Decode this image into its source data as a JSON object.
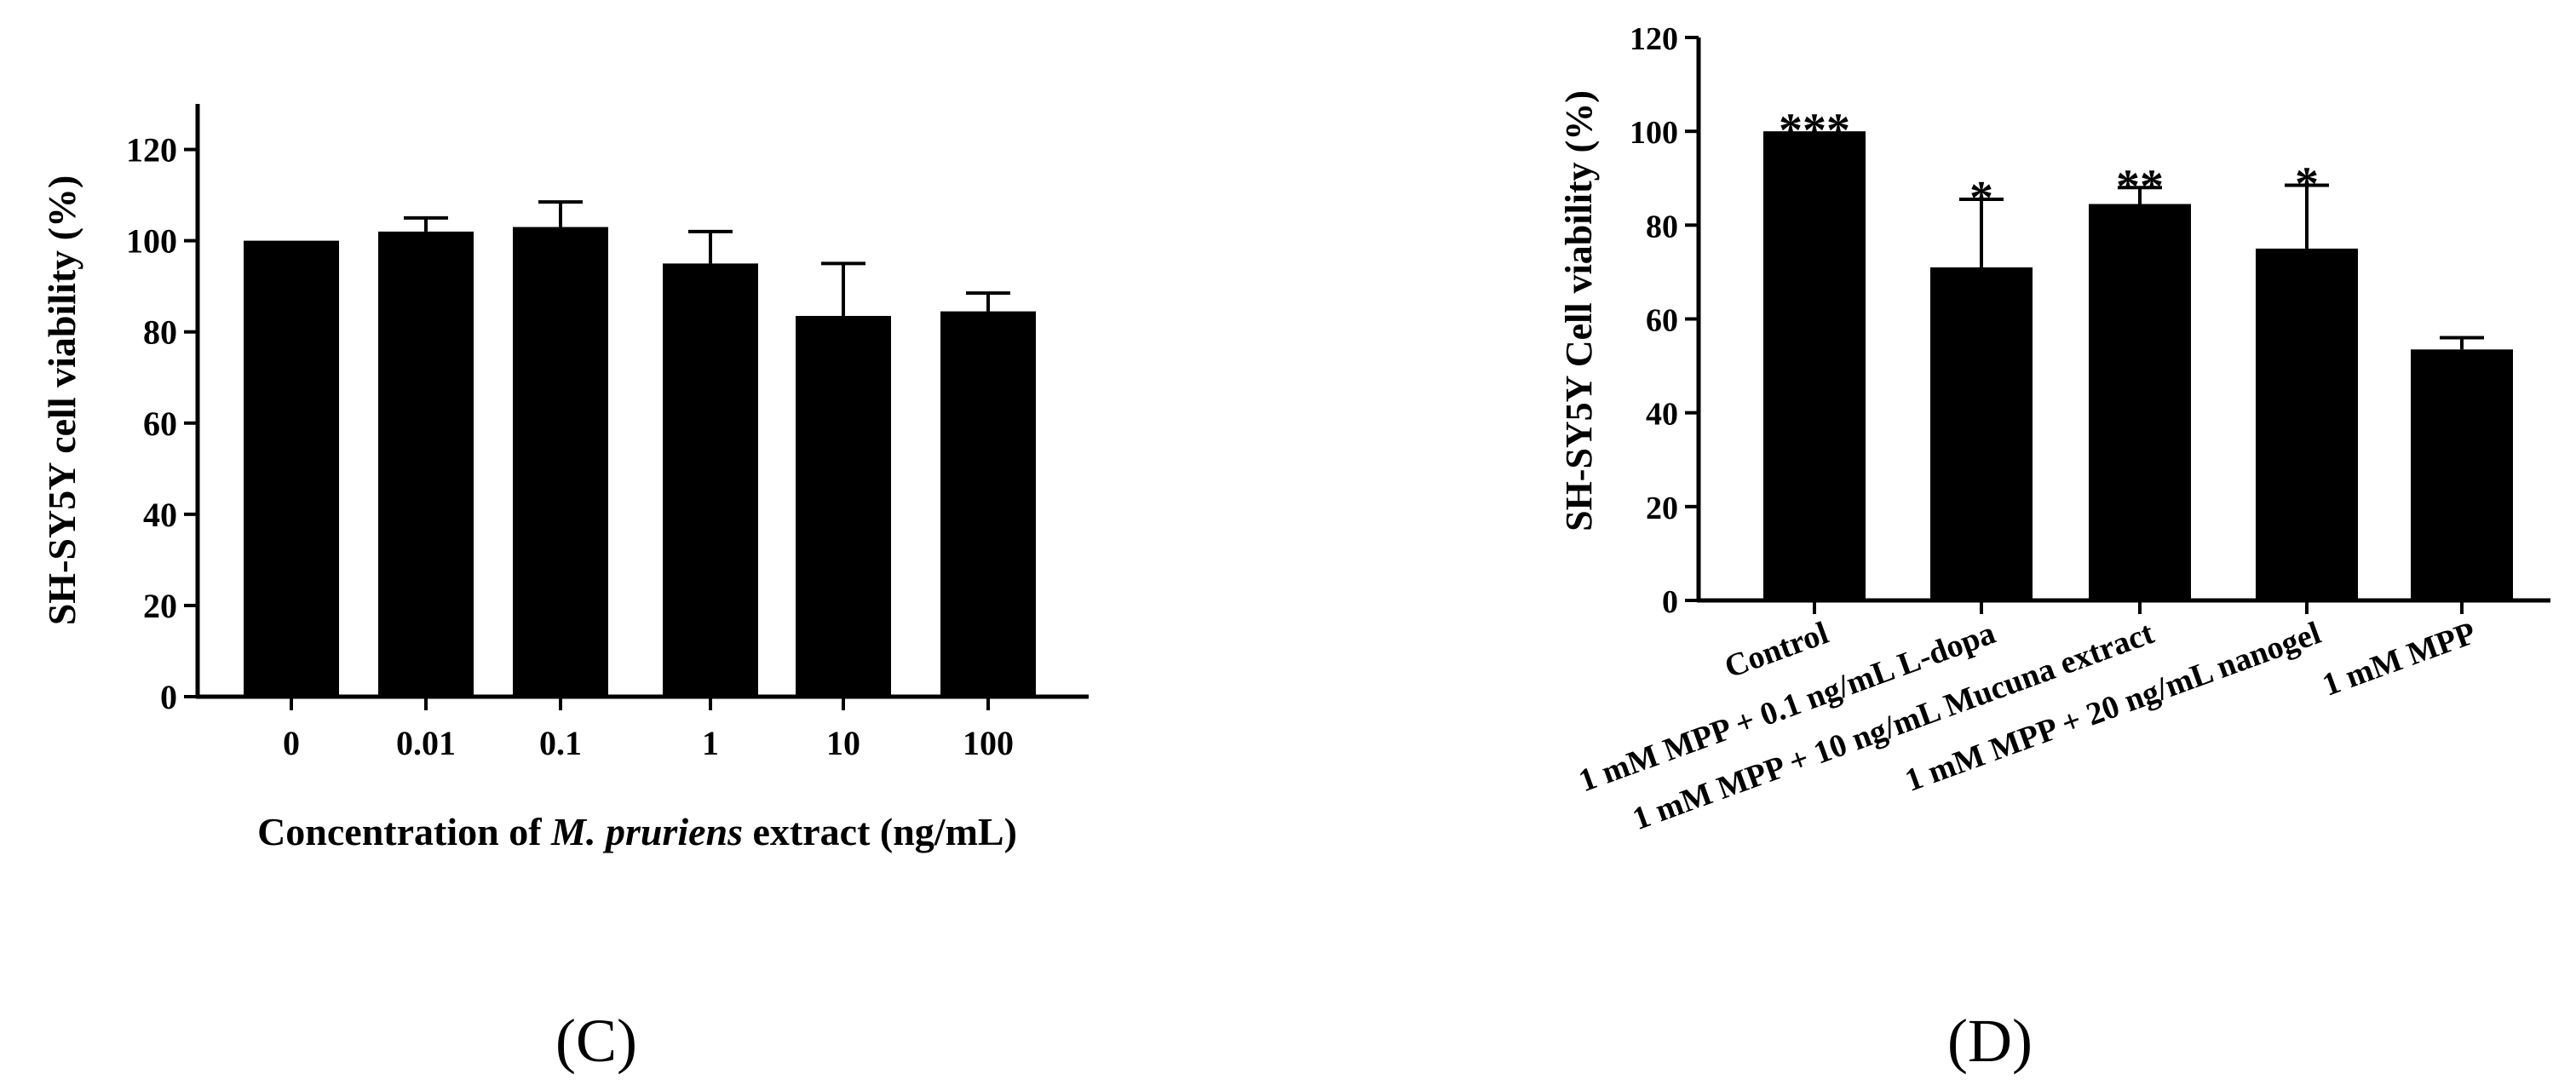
{
  "chart_data": [
    {
      "panel": "(C)",
      "type": "bar",
      "ylabel": "SH-SY5Y cell viability (%)",
      "xlabel": [
        "Concentration of ",
        "M. pruriens",
        " extract (ng/mL)"
      ],
      "categories": [
        "0",
        "0.01",
        "0.1",
        "1",
        "10",
        "100"
      ],
      "values": [
        100,
        102,
        103,
        95,
        83.5,
        84.5
      ],
      "errors": [
        0,
        3,
        5.5,
        7,
        11.5,
        4
      ],
      "ylim": [
        0,
        130
      ],
      "yticks": [
        0,
        20,
        40,
        60,
        80,
        100,
        120
      ],
      "bar_color": "#000000",
      "grid": false
    },
    {
      "panel": "(D)",
      "type": "bar",
      "ylabel": "SH-SY5Y Cell viability (%)",
      "categories": [
        "Control",
        "1 mM MPP + 0.1 ng/mL L-dopa",
        "1 mM MPP + 10 ng/mL Mucuna extract",
        "1 mM MPP + 20 ng/mL nanogel",
        "1 mM MPP"
      ],
      "values": [
        100,
        71,
        84.5,
        75,
        53.5
      ],
      "errors": [
        0,
        14.5,
        3.5,
        13.5,
        2.5
      ],
      "significance": [
        "***",
        "*",
        "**",
        "*",
        ""
      ],
      "ylim": [
        0,
        120
      ],
      "yticks": [
        0,
        20,
        40,
        60,
        80,
        100,
        120
      ],
      "bar_color": "#000000",
      "grid": false
    }
  ]
}
